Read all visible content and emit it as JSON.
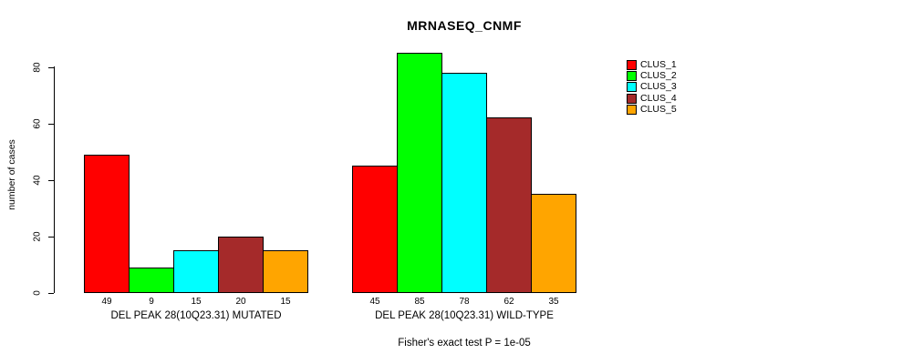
{
  "title": "MRNASEQ_CNMF",
  "chart_data": {
    "type": "bar",
    "title": "MRNASEQ_CNMF",
    "ylabel": "number of cases",
    "xlabel": "",
    "ylim": [
      0,
      80
    ],
    "yticks": [
      "0",
      "20",
      "40",
      "60",
      "80"
    ],
    "grid": false,
    "legend_position": "right-outside-top",
    "groups": [
      {
        "label": "DEL PEAK 28(10Q23.31) MUTATED",
        "values": [
          49,
          9,
          15,
          20,
          15
        ]
      },
      {
        "label": "DEL PEAK 28(10Q23.31) WILD-TYPE",
        "values": [
          45,
          85,
          78,
          62,
          35
        ]
      }
    ],
    "series": [
      {
        "name": "CLUS_1",
        "color": "#FF0000"
      },
      {
        "name": "CLUS_2",
        "color": "#00FF00"
      },
      {
        "name": "CLUS_3",
        "color": "#00FFFF"
      },
      {
        "name": "CLUS_4",
        "color": "#A52A2A"
      },
      {
        "name": "CLUS_5",
        "color": "#FFA500"
      }
    ],
    "bar_border_color": "#000000",
    "annotation": "Fisher's exact test P = 1e-05"
  }
}
